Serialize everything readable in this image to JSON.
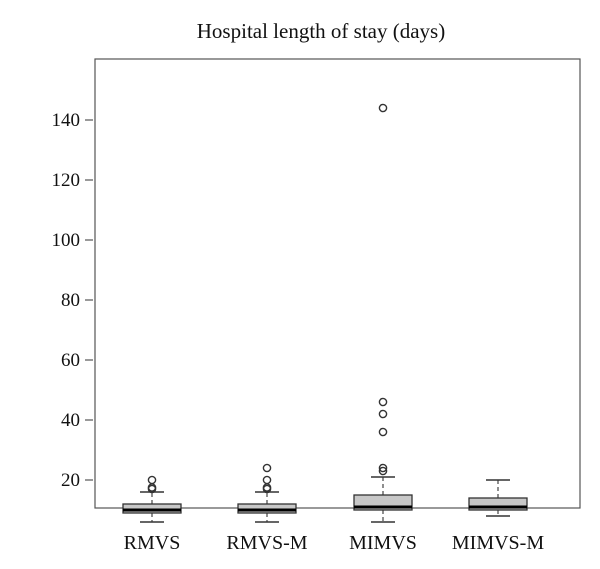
{
  "chart_data": {
    "type": "box",
    "title": "Hospital length of stay (days)",
    "xlabel": "",
    "ylabel": "",
    "ylim": [
      0,
      148
    ],
    "yticks": [
      20,
      40,
      60,
      80,
      100,
      120,
      140
    ],
    "grid": false,
    "categories": [
      "RMVS",
      "RMVS-M",
      "MIMVS",
      "MIMVS-M"
    ],
    "boxes": [
      {
        "category": "RMVS",
        "whisker_low": 6,
        "q1": 9,
        "median": 10,
        "q3": 12,
        "whisker_high": 16,
        "outliers": [
          17,
          17.5,
          20
        ]
      },
      {
        "category": "RMVS-M",
        "whisker_low": 6,
        "q1": 9,
        "median": 10,
        "q3": 12,
        "whisker_high": 16,
        "outliers": [
          17,
          17.5,
          20,
          24
        ]
      },
      {
        "category": "MIMVS",
        "whisker_low": 6,
        "q1": 10,
        "median": 11,
        "q3": 15,
        "whisker_high": 21,
        "outliers": [
          23,
          24,
          36,
          42,
          46,
          144
        ]
      },
      {
        "category": "MIMVS-M",
        "whisker_low": 8,
        "q1": 10,
        "median": 11,
        "q3": 14,
        "whisker_high": 20,
        "outliers": []
      }
    ],
    "colors": {
      "box_fill": "#c8c8c8",
      "stroke": "#333333"
    }
  }
}
